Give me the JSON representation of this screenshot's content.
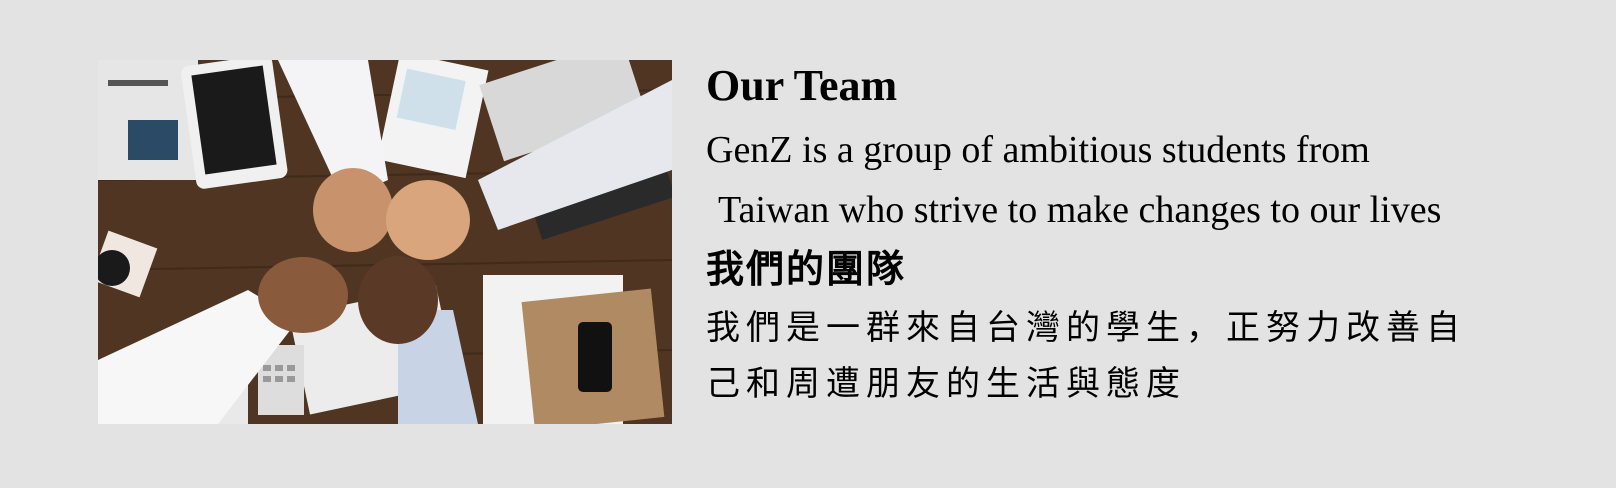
{
  "image": {
    "icon": "team-fist-bump-photo",
    "alt": "Team fist bump over a desk"
  },
  "section": {
    "title_en": "Our Team",
    "description_en_line1": "GenZ is a group of ambitious students from",
    "description_en_line2": "Taiwan who strive to make changes to our lives",
    "title_zh": "我們的團隊",
    "description_zh_line1": "我們是一群來自台灣的學生，正努力改善自",
    "description_zh_line2": "己和周遭朋友的生活與態度"
  },
  "colors": {
    "background": "#e3e3e3",
    "text": "#000000"
  }
}
